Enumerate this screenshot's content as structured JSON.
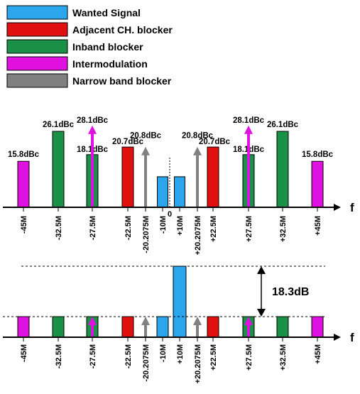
{
  "colors": {
    "wanted": "#2ba5ec",
    "adjacent": "#e01010",
    "inband": "#1a9146",
    "intermod": "#e010e0",
    "narrow": "#808080"
  },
  "chart_data": [
    {
      "type": "bar",
      "panel": "top",
      "legend": [
        {
          "key": "wanted",
          "label": "Wanted Signal"
        },
        {
          "key": "adjacent",
          "label": "Adjacent CH. blocker"
        },
        {
          "key": "inband",
          "label": "Inband blocker"
        },
        {
          "key": "intermod",
          "label": "Intermodulation"
        },
        {
          "key": "narrow",
          "label": "Narrow band blocker"
        }
      ],
      "xlabel": "f",
      "origin_label": "0",
      "categories": [
        "-45M",
        "-32.5M",
        "-27.5M",
        "-22.5M",
        "-20.2075M",
        "-10M",
        "+10M",
        "+20.2075M",
        "+22.5M",
        "+27.5M",
        "+32.5M",
        "+45M"
      ],
      "elements": [
        {
          "x": -45,
          "kind": "bar",
          "type": "intermod",
          "value": 15.8,
          "label": "15.8dBc"
        },
        {
          "x": -32.5,
          "kind": "bar",
          "type": "inband",
          "value": 26.1,
          "label": "26.1dBc"
        },
        {
          "x": -27.5,
          "kind": "bar",
          "type": "inband",
          "value": 18.1,
          "label": "18.1dBc"
        },
        {
          "x": -27.5,
          "kind": "arrow",
          "type": "intermod",
          "value": 28.1,
          "label": "28.1dBc"
        },
        {
          "x": -22.5,
          "kind": "bar",
          "type": "adjacent",
          "value": 20.7,
          "label": "20.7dBc"
        },
        {
          "x": -20.2075,
          "kind": "arrow",
          "type": "narrow",
          "value": 20.8,
          "label": "20.8dBc"
        },
        {
          "x": -10,
          "kind": "bar",
          "type": "wanted",
          "value": 10.5,
          "label": ""
        },
        {
          "x": 10,
          "kind": "bar",
          "type": "wanted",
          "value": 10.5,
          "label": ""
        },
        {
          "x": 20.2075,
          "kind": "arrow",
          "type": "narrow",
          "value": 20.8,
          "label": "20.8dBc"
        },
        {
          "x": 22.5,
          "kind": "bar",
          "type": "adjacent",
          "value": 20.7,
          "label": "20.7dBc"
        },
        {
          "x": 27.5,
          "kind": "bar",
          "type": "inband",
          "value": 18.1,
          "label": "18.1dBc"
        },
        {
          "x": 27.5,
          "kind": "arrow",
          "type": "intermod",
          "value": 28.1,
          "label": "28.1dBc"
        },
        {
          "x": 32.5,
          "kind": "bar",
          "type": "inband",
          "value": 26.1,
          "label": "26.1dBc"
        },
        {
          "x": 45,
          "kind": "bar",
          "type": "intermod",
          "value": 15.8,
          "label": "15.8dBc"
        }
      ]
    },
    {
      "type": "bar",
      "panel": "bottom",
      "xlabel": "f",
      "categories": [
        "-45M",
        "-32.5M",
        "-27.5M",
        "-22.5M",
        "-20.2075M",
        "-10M",
        "+10M",
        "+20.2075M",
        "+22.5M",
        "+27.5M",
        "+32.5M",
        "+45M"
      ],
      "gap_annotation": "18.3dB",
      "gap_dB": 18.3,
      "elements": [
        {
          "x": -45,
          "kind": "bar",
          "type": "intermod",
          "value": 0
        },
        {
          "x": -32.5,
          "kind": "bar",
          "type": "inband",
          "value": 0
        },
        {
          "x": -27.5,
          "kind": "bar",
          "type": "inband",
          "value": 0
        },
        {
          "x": -27.5,
          "kind": "arrow",
          "type": "intermod",
          "value": 0
        },
        {
          "x": -22.5,
          "kind": "bar",
          "type": "adjacent",
          "value": 0
        },
        {
          "x": -20.2075,
          "kind": "arrow",
          "type": "narrow",
          "value": 0
        },
        {
          "x": -10,
          "kind": "bar",
          "type": "wanted",
          "value": 0
        },
        {
          "x": 10,
          "kind": "bar",
          "type": "wanted",
          "value": 18.3
        },
        {
          "x": 20.2075,
          "kind": "arrow",
          "type": "narrow",
          "value": 0
        },
        {
          "x": 22.5,
          "kind": "bar",
          "type": "adjacent",
          "value": 0
        },
        {
          "x": 27.5,
          "kind": "bar",
          "type": "inband",
          "value": 0
        },
        {
          "x": 27.5,
          "kind": "arrow",
          "type": "intermod",
          "value": 0
        },
        {
          "x": 32.5,
          "kind": "bar",
          "type": "inband",
          "value": 0
        },
        {
          "x": 45,
          "kind": "bar",
          "type": "intermod",
          "value": 0
        }
      ]
    }
  ]
}
